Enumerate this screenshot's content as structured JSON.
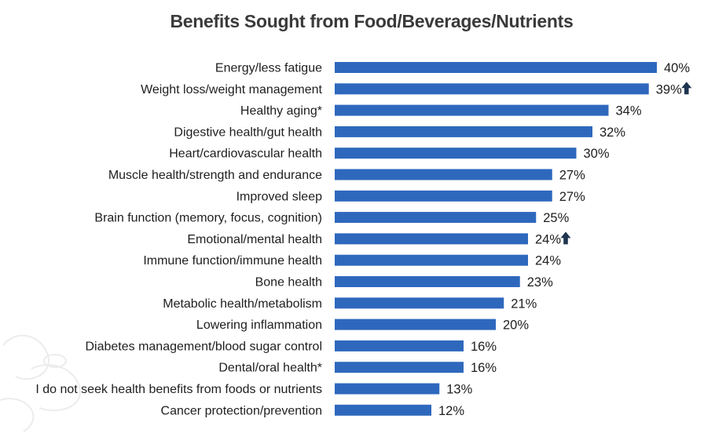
{
  "chart_data": {
    "type": "bar",
    "orientation": "horizontal",
    "title": "Benefits Sought from Food/Beverages/Nutrients",
    "xlabel": "",
    "ylabel": "",
    "xlim": [
      0,
      40
    ],
    "grid": false,
    "legend": "none",
    "bar_color": "#2e68bd",
    "categories": [
      "Energy/less fatigue",
      "Weight loss/weight management",
      "Healthy aging*",
      "Digestive health/gut health",
      "Heart/cardiovascular health",
      "Muscle health/strength and endurance",
      "Improved sleep",
      "Brain function (memory, focus, cognition)",
      "Emotional/mental health",
      "Immune function/immune health",
      "Bone health",
      "Metabolic health/metabolism",
      "Lowering inflammation",
      "Diabetes management/blood sugar control",
      "Dental/oral health*",
      "I do not seek health benefits from foods or nutrients",
      "Cancer protection/prevention"
    ],
    "values": [
      40,
      39,
      34,
      32,
      30,
      27,
      27,
      25,
      24,
      24,
      23,
      21,
      20,
      16,
      16,
      13,
      12
    ],
    "value_labels": [
      "40%",
      "39%",
      "34%",
      "32%",
      "30%",
      "27%",
      "27%",
      "25%",
      "24%",
      "24%",
      "23%",
      "21%",
      "20%",
      "16%",
      "16%",
      "13%",
      "12%"
    ],
    "up_arrows": [
      false,
      true,
      false,
      false,
      false,
      false,
      false,
      false,
      true,
      false,
      false,
      false,
      false,
      false,
      false,
      false,
      false
    ],
    "arrow_color": "#1f3550"
  }
}
